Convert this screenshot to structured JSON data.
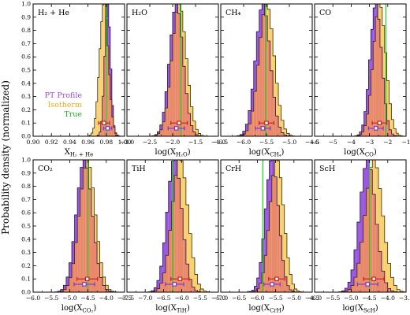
{
  "figure": {
    "ylabel": "Probability density (normalized)",
    "legend": [
      {
        "label": "PT Profile",
        "color": "#9d4ddf"
      },
      {
        "label": "Isotherm",
        "color": "#f2a81e"
      },
      {
        "label": "True",
        "color": "#1db01d"
      }
    ]
  },
  "colors": {
    "pt_fill": "#9a58e0",
    "pt_edge": "#2a1050",
    "iso_fill": "#f7d070",
    "iso_edge": "#3a2c00",
    "overlap_fill": "#e8896a",
    "true_line": "#22cc22",
    "pt_err": "#7a3ac0",
    "iso_err": "#c62020"
  },
  "chart_data": [
    {
      "type": "histogram",
      "title": "H₂ + He",
      "xlabel": "X",
      "xsub": "H₂ + He",
      "xlim": [
        0.9,
        1.0
      ],
      "xticks": [
        "0.90",
        "0.92",
        "0.94",
        "0.96",
        "0.98",
        "1.00"
      ],
      "xtickvals": [
        0.9,
        0.92,
        0.94,
        0.96,
        0.98,
        1.0
      ],
      "ylim": [
        0,
        1.0
      ],
      "yticks": [
        "0.0",
        "0.1",
        "0.2",
        "0.3",
        "0.4",
        "0.5",
        "0.6",
        "0.7",
        "0.8",
        "0.9",
        "1.0"
      ],
      "true_value": 0.98,
      "series": [
        {
          "name": "PT Profile",
          "mean": 0.9815,
          "sigma": 0.0032,
          "err_y": 0.06,
          "err_half": 0.0045
        },
        {
          "name": "Isotherm",
          "mean": 0.9775,
          "sigma": 0.0048,
          "err_y": 0.1,
          "err_half": 0.006
        }
      ]
    },
    {
      "type": "histogram",
      "title": "H₂O",
      "xlabel": "log(X",
      "xsub": "H₂O",
      "xlim": [
        -3.0,
        -1.0
      ],
      "xticks": [
        "−3.0",
        "−2.5",
        "−2.0",
        "−1.5",
        "−1.0"
      ],
      "xtickvals": [
        -3.0,
        -2.5,
        -2.0,
        -1.5,
        -1.0
      ],
      "ylim": [
        0,
        1.0
      ],
      "true_value": -1.82,
      "series": [
        {
          "name": "PT Profile",
          "mean": -1.92,
          "sigma": 0.15,
          "err_y": 0.06,
          "err_half": 0.18
        },
        {
          "name": "Isotherm",
          "mean": -1.86,
          "sigma": 0.16,
          "err_y": 0.1,
          "err_half": 0.18
        }
      ]
    },
    {
      "type": "histogram",
      "title": "CH₄",
      "xlabel": "log(X",
      "xsub": "CH₄",
      "xlim": [
        -6.5,
        -4.5
      ],
      "xticks": [
        "−6.5",
        "−6.0",
        "−5.5",
        "−5.0",
        "−4.5"
      ],
      "xtickvals": [
        -6.5,
        -6.0,
        -5.5,
        -5.0,
        -4.5
      ],
      "ylim": [
        0,
        1.0
      ],
      "true_value": -5.52,
      "series": [
        {
          "name": "PT Profile",
          "mean": -5.58,
          "sigma": 0.16,
          "err_y": 0.06,
          "err_half": 0.16
        },
        {
          "name": "Isotherm",
          "mean": -5.5,
          "sigma": 0.17,
          "err_y": 0.1,
          "err_half": 0.16
        }
      ]
    },
    {
      "type": "histogram",
      "title": "CO",
      "xlabel": "log(X",
      "xsub": "CO",
      "xlim": [
        -6.0,
        -1.0
      ],
      "xticks": [
        "−6",
        "−5",
        "−4",
        "−3",
        "−2",
        "−1"
      ],
      "xtickvals": [
        -6,
        -5,
        -4,
        -3,
        -2,
        -1
      ],
      "ylim": [
        0,
        1.0
      ],
      "true_value": -2.1,
      "series": [
        {
          "name": "PT Profile",
          "mean": -2.65,
          "sigma": 0.32,
          "err_y": 0.06,
          "err_half": 0.4
        },
        {
          "name": "Isotherm",
          "mean": -2.45,
          "sigma": 0.35,
          "err_y": 0.1,
          "err_half": 0.4
        }
      ]
    },
    {
      "type": "histogram",
      "title": "CO₂",
      "xlabel": "log(X",
      "xsub": "CO₂",
      "xlim": [
        -6.0,
        -3.5
      ],
      "xticks": [
        "−6.0",
        "−5.5",
        "−5.0",
        "−4.5",
        "−4.0",
        "−3.5"
      ],
      "xtickvals": [
        -6.0,
        -5.5,
        -5.0,
        -4.5,
        -4.0,
        -3.5
      ],
      "ylim": [
        0,
        1.0
      ],
      "yticks": [
        "0.0",
        "0.1",
        "0.2",
        "0.3",
        "0.4",
        "0.5",
        "0.6",
        "0.7",
        "0.8",
        "0.9",
        "1.0"
      ],
      "true_value": -4.5,
      "series": [
        {
          "name": "PT Profile",
          "mean": -4.6,
          "sigma": 0.22,
          "err_y": 0.06,
          "err_half": 0.28
        },
        {
          "name": "Isotherm",
          "mean": -4.52,
          "sigma": 0.22,
          "err_y": 0.1,
          "err_half": 0.28
        }
      ]
    },
    {
      "type": "histogram",
      "title": "TiH",
      "xlabel": "log(X",
      "xsub": "TiH",
      "xlim": [
        -7.5,
        -5.0
      ],
      "xticks": [
        "−7.5",
        "−7.0",
        "−6.5",
        "−6.0",
        "−5.5",
        "−5.0"
      ],
      "xtickvals": [
        -7.5,
        -7.0,
        -6.5,
        -6.0,
        -5.5,
        -5.0
      ],
      "ylim": [
        0,
        1.0
      ],
      "true_value": -6.25,
      "series": [
        {
          "name": "PT Profile",
          "mean": -6.2,
          "sigma": 0.2,
          "err_y": 0.06,
          "err_half": 0.25
        },
        {
          "name": "Isotherm",
          "mean": -6.05,
          "sigma": 0.22,
          "err_y": 0.1,
          "err_half": 0.25
        }
      ]
    },
    {
      "type": "histogram",
      "title": "CrH",
      "xlabel": "log(X",
      "xsub": "CrH",
      "xlim": [
        -7.0,
        -4.5
      ],
      "xticks": [
        "−7.0",
        "−6.5",
        "−6.0",
        "−5.5",
        "−5.0",
        "−4.5"
      ],
      "xtickvals": [
        -7.0,
        -6.5,
        -6.0,
        -5.5,
        -5.0,
        -4.5
      ],
      "ylim": [
        0,
        1.0
      ],
      "true_value": -5.85,
      "series": [
        {
          "name": "PT Profile",
          "mean": -5.6,
          "sigma": 0.18,
          "err_y": 0.06,
          "err_half": 0.22
        },
        {
          "name": "Isotherm",
          "mean": -5.47,
          "sigma": 0.19,
          "err_y": 0.1,
          "err_half": 0.22
        }
      ]
    },
    {
      "type": "histogram",
      "title": "ScH",
      "xlabel": "log(X",
      "xsub": "ScH",
      "xlim": [
        -6.0,
        -3.5
      ],
      "xticks": [
        "−6.0",
        "−5.5",
        "−5.0",
        "−4.5",
        "−4.0",
        "−3.5"
      ],
      "xtickvals": [
        -6.0,
        -5.5,
        -5.0,
        -4.5,
        -4.0,
        -3.5
      ],
      "ylim": [
        0,
        1.0
      ],
      "true_value": -4.5,
      "series": [
        {
          "name": "PT Profile",
          "mean": -4.55,
          "sigma": 0.22,
          "err_y": 0.06,
          "err_half": 0.28
        },
        {
          "name": "Isotherm",
          "mean": -4.38,
          "sigma": 0.24,
          "err_y": 0.1,
          "err_half": 0.28
        }
      ]
    }
  ]
}
